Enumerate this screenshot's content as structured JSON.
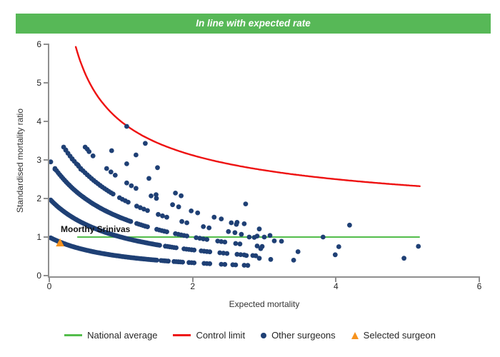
{
  "header": {
    "title": "In line with expected rate"
  },
  "colors": {
    "header_green": "#57b857",
    "line_green": "#53bd4b",
    "control_red": "#ee1111",
    "surgeon_navy": "#1f4075",
    "selected_orange": "#f6921e",
    "axis_gray": "#8f8f8f",
    "text_dark": "#333333"
  },
  "chart_data": {
    "type": "scatter",
    "xlabel": "Expected mortality",
    "ylabel": "Standardised mortality ratio",
    "xlim": [
      0,
      6
    ],
    "ylim": [
      0,
      6
    ],
    "x_ticks": [
      0,
      2,
      4,
      6
    ],
    "y_ticks": [
      0,
      1,
      2,
      3,
      4,
      5,
      6
    ],
    "grid": false,
    "national_average": {
      "y": 1,
      "x_start": 0.39,
      "x_end": 5.17
    },
    "control_limit": {
      "formula": "smr = 1 + 3/sqrt(expected)",
      "a": 1,
      "b": 3,
      "x_start": 0.37,
      "x_end": 5.17
    },
    "surgeon_bands": {
      "note": "dense dot bands: smr = k/(expected + offset), k = observed deaths + 1; segments are [x_start, x_end, x_step]",
      "denominator_offset": 1,
      "bands": [
        {
          "k": 1,
          "segments": [
            [
              0.02,
              1.5,
              0.02
            ],
            [
              1.56,
              1.66,
              0.025
            ],
            [
              1.74,
              1.86,
              0.03
            ],
            [
              1.95,
              2.05,
              0.035
            ],
            [
              2.16,
              2.24,
              0.04
            ],
            [
              2.4,
              2.46,
              0.05
            ],
            [
              2.56,
              2.6,
              0.04
            ],
            [
              2.72,
              2.78,
              0.05
            ]
          ]
        },
        {
          "k": 2,
          "segments": [
            [
              0.02,
              1.55,
              0.02
            ],
            [
              1.62,
              1.78,
              0.03
            ],
            [
              1.88,
              2.02,
              0.035
            ],
            [
              2.12,
              2.26,
              0.04
            ],
            [
              2.38,
              2.5,
              0.05
            ],
            [
              2.62,
              2.72,
              0.05
            ],
            [
              2.84,
              2.88,
              0.04
            ]
          ]
        },
        {
          "k": 3,
          "segments": [
            [
              0.08,
              1.15,
              0.022
            ],
            [
              1.22,
              1.38,
              0.03
            ],
            [
              1.5,
              1.64,
              0.035
            ],
            [
              1.76,
              1.92,
              0.04
            ],
            [
              2.05,
              2.2,
              0.05
            ],
            [
              2.35,
              2.45,
              0.05
            ],
            [
              2.6,
              2.7,
              0.06
            ],
            [
              2.9,
              3.0,
              0.07
            ]
          ]
        },
        {
          "k": 4,
          "segments": [
            [
              0.2,
              0.9,
              0.03
            ],
            [
              0.98,
              1.12,
              0.04
            ],
            [
              1.22,
              1.38,
              0.05
            ],
            [
              1.52,
              1.68,
              0.06
            ],
            [
              1.85,
              1.98,
              0.07
            ],
            [
              2.15,
              2.28,
              0.08
            ],
            [
              2.5,
              2.6,
              0.09
            ],
            [
              2.9,
              3.0,
              0.1
            ]
          ]
        },
        {
          "k": 5,
          "segments": [
            [
              0.5,
              0.64,
              0.055
            ],
            [
              0.8,
              0.94,
              0.06
            ],
            [
              1.08,
              1.22,
              0.065
            ],
            [
              1.42,
              1.56,
              0.075
            ],
            [
              1.72,
              1.86,
              0.085
            ],
            [
              1.98,
              2.12,
              0.09
            ],
            [
              2.3,
              2.4,
              0.1
            ],
            [
              2.62,
              2.72,
              0.1
            ]
          ]
        }
      ]
    },
    "other_surgeon_points": [
      [
        0.02,
        2.95
      ],
      [
        0.08,
        2.76
      ],
      [
        0.23,
        3.26
      ],
      [
        0.32,
        3.02
      ],
      [
        0.4,
        2.87
      ],
      [
        0.44,
        2.76
      ],
      [
        0.53,
        3.28
      ],
      [
        0.87,
        3.24
      ],
      [
        1.08,
        3.87
      ],
      [
        1.08,
        2.9
      ],
      [
        1.21,
        3.13
      ],
      [
        1.34,
        3.43
      ],
      [
        1.39,
        2.52
      ],
      [
        1.49,
        2.1
      ],
      [
        1.51,
        2.8
      ],
      [
        1.76,
        2.14
      ],
      [
        1.84,
        2.07
      ],
      [
        2.54,
        1.37
      ],
      [
        2.61,
        1.33
      ],
      [
        2.68,
        1.07
      ],
      [
        2.74,
        1.86
      ],
      [
        2.79,
        1.0
      ],
      [
        2.86,
        0.99
      ],
      [
        2.93,
        1.21
      ],
      [
        2.95,
        0.7
      ],
      [
        3.08,
        1.04
      ],
      [
        3.14,
        0.9
      ],
      [
        3.24,
        0.89
      ],
      [
        2.93,
        0.45
      ],
      [
        3.09,
        0.42
      ],
      [
        3.41,
        0.4
      ],
      [
        3.47,
        0.62
      ],
      [
        3.82,
        1.0
      ],
      [
        3.99,
        0.54
      ],
      [
        4.04,
        0.75
      ],
      [
        4.19,
        1.31
      ],
      [
        4.95,
        0.45
      ],
      [
        5.15,
        0.76
      ],
      [
        2.75,
        0.52
      ]
    ],
    "selected_surgeon": {
      "name": "Moorthy Srinivas",
      "x": 0.15,
      "y": 0.85
    }
  },
  "legend": {
    "items": [
      {
        "label": "National average",
        "marker": "green-line"
      },
      {
        "label": "Control limit",
        "marker": "red-line"
      },
      {
        "label": "Other surgeons",
        "marker": "navy-dot"
      },
      {
        "label": "Selected surgeon",
        "marker": "orange-triangle"
      }
    ]
  }
}
